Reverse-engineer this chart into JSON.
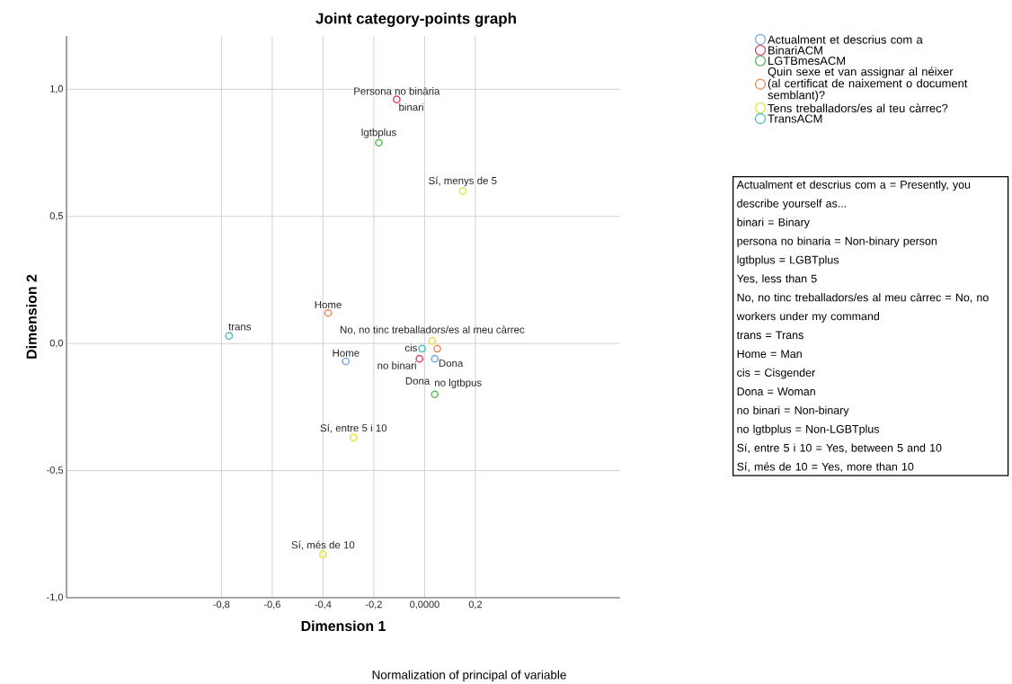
{
  "chart_data": {
    "type": "scatter",
    "title": "Joint category-points graph",
    "xlabel": "Dimension 1",
    "ylabel": "Dimension 2",
    "xlim": [
      -1.41,
      0.77
    ],
    "ylim": [
      -1.0,
      1.21
    ],
    "xticks": [
      {
        "value": -0.8,
        "label": "-0,8"
      },
      {
        "value": -0.6,
        "label": "-0,6"
      },
      {
        "value": -0.4,
        "label": "-0,4"
      },
      {
        "value": -0.2,
        "label": "-0,2"
      },
      {
        "value": 0,
        "label": "0,0000"
      },
      {
        "value": 0.2,
        "label": "0,2"
      }
    ],
    "yticks": [
      {
        "value": -1.0,
        "label": "-1,0"
      },
      {
        "value": -0.5,
        "label": "-0,5"
      },
      {
        "value": 0,
        "label": "0,0"
      },
      {
        "value": 0.5,
        "label": "0,5"
      },
      {
        "value": 1.0,
        "label": "1,0"
      }
    ],
    "grid": true,
    "legend": "right",
    "marker": "circle",
    "series": [
      {
        "name": "Actualment et descrius com a",
        "color": "#7aa6e0",
        "x": [
          -0.31,
          0.04
        ],
        "values": [
          -0.07,
          -0.06
        ]
      },
      {
        "name": "BinariACM",
        "color": "#e0436b",
        "x": [
          -0.11,
          -0.02
        ],
        "values": [
          0.96,
          -0.06
        ]
      },
      {
        "name": "LGTBmesACM",
        "color": "#5cb85c",
        "x": [
          -0.18,
          0.04
        ],
        "values": [
          0.79,
          -0.2
        ]
      },
      {
        "name": "Quin sexe et van assignar al néixer (al certificat de naixement o document semblant)?",
        "color": "#f08a5a",
        "x": [
          -0.38,
          0.05
        ],
        "values": [
          0.12,
          -0.02
        ]
      },
      {
        "name": "Tens treballadors/es al teu càrrec?",
        "color": "#e6e04a",
        "x": [
          0.15,
          0.03,
          -0.28,
          -0.4
        ],
        "values": [
          0.6,
          0.01,
          -0.37,
          -0.83
        ]
      },
      {
        "name": "TransACM",
        "color": "#4fbfb8",
        "x": [
          -0.77,
          -0.01
        ],
        "values": [
          0.03,
          -0.02
        ]
      }
    ],
    "annotations": [
      {
        "text": "Persona no binària",
        "x": -0.11,
        "y": 0.96
      },
      {
        "text": "binari",
        "x": -0.11,
        "y": 0.96
      },
      {
        "text": "lgtbplus",
        "x": -0.18,
        "y": 0.79
      },
      {
        "text": "Sí, menys de 5",
        "x": 0.15,
        "y": 0.6
      },
      {
        "text": "Home",
        "x": -0.38,
        "y": 0.12
      },
      {
        "text": "trans",
        "x": -0.77,
        "y": 0.03
      },
      {
        "text": "No, no tinc treballadors/es al meu càrrec",
        "x": 0.03,
        "y": 0.01
      },
      {
        "text": "Home",
        "x": -0.31,
        "y": -0.07
      },
      {
        "text": "cis",
        "x": -0.01,
        "y": -0.02
      },
      {
        "text": "Dona",
        "x": 0.04,
        "y": -0.06
      },
      {
        "text": "Dona",
        "x": 0.05,
        "y": -0.02
      },
      {
        "text": "no binari",
        "x": -0.02,
        "y": -0.06
      },
      {
        "text": "no lgtbpus",
        "x": 0.04,
        "y": -0.2
      },
      {
        "text": "Sí, entre 5 i 10",
        "x": -0.28,
        "y": -0.37
      },
      {
        "text": "Sí, més de 10",
        "x": -0.4,
        "y": -0.83
      },
      "Normalization of principal of variable",
      "Actualment et descrius com a = Presently, you describe yourself as...",
      "binari = Binary",
      "persona no binaria = Non-binary person",
      "lgtbplus = LGBTplus",
      "Yes, less than 5",
      "No, no tinc treballadors/es al meu càrrec = No, no workers under my command",
      "trans = Trans",
      "Home = Man",
      "cis = Cisgender",
      "Dona = Woman",
      "no binari = Non-binary",
      "no lgtbplus = Non-LGBTplus",
      "Sí, entre 5 i 10 = Yes, between 5 and 10",
      "Sí, més de 10 = Yes, more than 10"
    ]
  }
}
